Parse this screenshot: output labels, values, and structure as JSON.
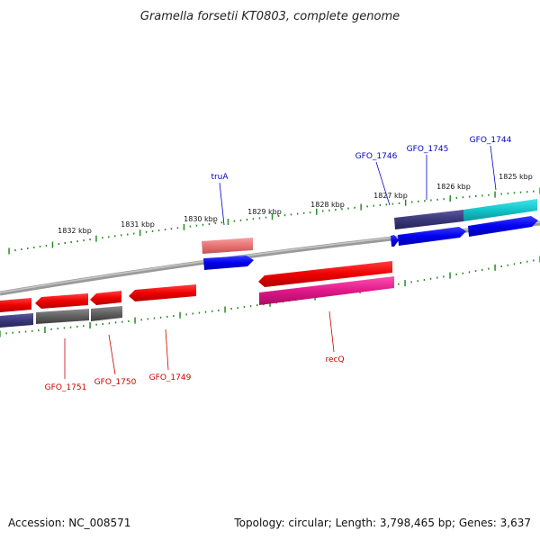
{
  "title": "Gramella forsetii KT0803, complete genome",
  "accession": "Accession: NC_008571",
  "topology": "Topology: circular; Length: 3,798,465 bp; Genes: 3,637",
  "colors": {
    "backbone": "#808080",
    "ticks": "#2a8a2a",
    "label_forward": "#0000cc",
    "label_reverse": "#cc0000",
    "blue_gene": "#0000ee",
    "red_gene": "#ee0000",
    "navy_gene": "#3a3878",
    "teal_gene": "#14c4c8",
    "pink_gene": "#e01888",
    "salmon_gene": "#e87474",
    "grey_gene": "#606060"
  },
  "kbp_labels": [
    "1832 kbp",
    "1831 kbp",
    "1830 kbp",
    "1829 kbp",
    "1828 kbp",
    "1827 kbp",
    "1826 kbp",
    "1825 kbp"
  ],
  "gene_labels": {
    "truA": "truA",
    "gfo1746": "GFO_1746",
    "gfo1745": "GFO_1745",
    "gfo1744": "GFO_1744",
    "gfo1751": "GFO_1751",
    "gfo1750": "GFO_1750",
    "gfo1749": "GFO_1749",
    "recQ": "recQ"
  }
}
